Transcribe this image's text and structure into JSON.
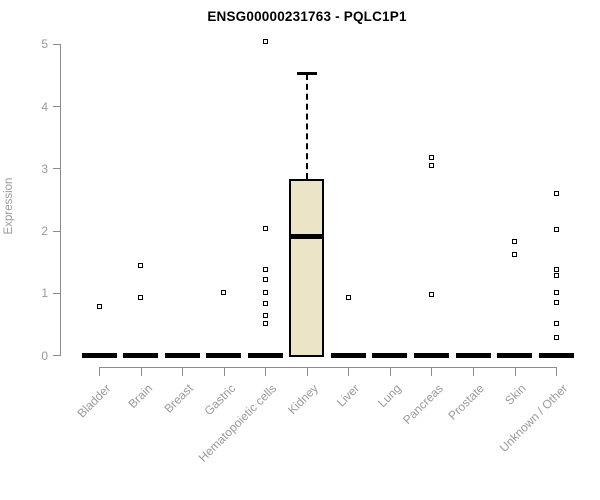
{
  "chart_data": {
    "type": "box",
    "title": "ENSG00000231763 - PQLC1P1",
    "ylabel": "Expression",
    "xlabel": "",
    "ylim": [
      0,
      5
    ],
    "yticks": [
      0,
      1,
      2,
      3,
      4,
      5
    ],
    "grid": false,
    "legend": "none",
    "colors": {
      "box_fill": "#ece4c7",
      "box_border": "#000000",
      "axis": "#8c8c8c",
      "text": "#9a9a9a",
      "title": "#000000"
    },
    "categories": [
      "Bladder",
      "Brain",
      "Breast",
      "Gastric",
      "Hematopoietic cells",
      "Kidney",
      "Liver",
      "Lung",
      "Pancreas",
      "Prostate",
      "Skin",
      "Unknown / Other"
    ],
    "series": [
      {
        "category": "Bladder",
        "q1": 0,
        "median": 0,
        "q3": 0,
        "whisker_low": 0,
        "whisker_high": 0,
        "outliers": [
          0.78
        ]
      },
      {
        "category": "Brain",
        "q1": 0,
        "median": 0,
        "q3": 0,
        "whisker_low": 0,
        "whisker_high": 0,
        "outliers": [
          1.43,
          0.92
        ]
      },
      {
        "category": "Breast",
        "q1": 0,
        "median": 0,
        "q3": 0,
        "whisker_low": 0,
        "whisker_high": 0,
        "outliers": []
      },
      {
        "category": "Gastric",
        "q1": 0,
        "median": 0,
        "q3": 0,
        "whisker_low": 0,
        "whisker_high": 0,
        "outliers": [
          1.01
        ]
      },
      {
        "category": "Hematopoietic cells",
        "q1": 0,
        "median": 0,
        "q3": 0,
        "whisker_low": 0,
        "whisker_high": 0,
        "outliers": [
          5.03,
          2.04,
          1.38,
          1.21,
          1.0,
          0.82,
          0.64,
          0.5
        ]
      },
      {
        "category": "Kidney",
        "q1": 0,
        "median": 1.9,
        "q3": 2.83,
        "whisker_low": 0,
        "whisker_high": 4.52,
        "outliers": []
      },
      {
        "category": "Liver",
        "q1": 0,
        "median": 0,
        "q3": 0,
        "whisker_low": 0,
        "whisker_high": 0,
        "outliers": [
          0.93
        ]
      },
      {
        "category": "Lung",
        "q1": 0,
        "median": 0,
        "q3": 0,
        "whisker_low": 0,
        "whisker_high": 0,
        "outliers": []
      },
      {
        "category": "Pancreas",
        "q1": 0,
        "median": 0,
        "q3": 0,
        "whisker_low": 0,
        "whisker_high": 0,
        "outliers": [
          3.17,
          3.05,
          0.98
        ]
      },
      {
        "category": "Prostate",
        "q1": 0,
        "median": 0,
        "q3": 0,
        "whisker_low": 0,
        "whisker_high": 0,
        "outliers": []
      },
      {
        "category": "Skin",
        "q1": 0,
        "median": 0,
        "q3": 0,
        "whisker_low": 0,
        "whisker_high": 0,
        "outliers": [
          1.83,
          1.62
        ]
      },
      {
        "category": "Unknown / Other",
        "q1": 0,
        "median": 0,
        "q3": 0,
        "whisker_low": 0,
        "whisker_high": 0,
        "outliers": [
          2.59,
          2.01,
          1.38,
          1.27,
          1.01,
          0.85,
          0.51,
          0.28
        ]
      }
    ]
  }
}
